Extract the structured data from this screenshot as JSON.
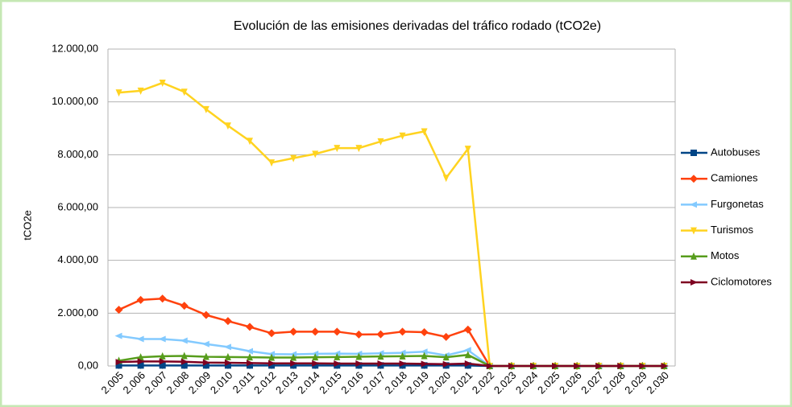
{
  "chart_data": {
    "type": "line",
    "title": "Evolución de las emisiones derivadas del tráfico rodado (tCO2e)",
    "y_label": "tCO2e",
    "categories": [
      "2.005",
      "2.006",
      "2.007",
      "2.008",
      "2.009",
      "2.010",
      "2.011",
      "2.012",
      "2.013",
      "2.014",
      "2.015",
      "2.016",
      "2.017",
      "2.018",
      "2.019",
      "2.020",
      "2.021",
      "2.022",
      "2.023",
      "2.024",
      "2.025",
      "2.026",
      "2.027",
      "2.028",
      "2.029",
      "2.030"
    ],
    "ylim": [
      0,
      12000
    ],
    "yticks": [
      {
        "value": 0,
        "label": "0,00"
      },
      {
        "value": 2000,
        "label": "2.000,00"
      },
      {
        "value": 4000,
        "label": "4.000,00"
      },
      {
        "value": 6000,
        "label": "6.000,00"
      },
      {
        "value": 8000,
        "label": "8.000,00"
      },
      {
        "value": 10000,
        "label": "10.000,00"
      },
      {
        "value": 12000,
        "label": "12.000,00"
      }
    ],
    "grid": true,
    "legend": "right",
    "series": [
      {
        "name": "Autobuses",
        "color": "#004586",
        "marker": "square",
        "values": [
          20,
          20,
          20,
          20,
          20,
          20,
          20,
          20,
          20,
          20,
          20,
          20,
          20,
          20,
          20,
          20,
          20,
          0,
          0,
          0,
          0,
          0,
          0,
          0,
          0,
          0
        ]
      },
      {
        "name": "Camiones",
        "color": "#ff420e",
        "marker": "diamond",
        "values": [
          2130,
          2500,
          2550,
          2280,
          1930,
          1700,
          1480,
          1240,
          1300,
          1300,
          1300,
          1190,
          1200,
          1300,
          1280,
          1100,
          1380,
          0,
          0,
          0,
          0,
          0,
          0,
          0,
          0,
          0
        ]
      },
      {
        "name": "Furgonetas",
        "color": "#83caff",
        "marker": "left",
        "values": [
          1140,
          1020,
          1020,
          960,
          830,
          720,
          560,
          450,
          440,
          460,
          470,
          460,
          480,
          500,
          540,
          400,
          600,
          0,
          0,
          0,
          0,
          0,
          0,
          0,
          0,
          0
        ]
      },
      {
        "name": "Turismos",
        "color": "#ffd320",
        "marker": "down",
        "values": [
          10350,
          10420,
          10720,
          10380,
          9720,
          9100,
          8520,
          7700,
          7870,
          8030,
          8250,
          8250,
          8500,
          8720,
          8880,
          7120,
          8220,
          0,
          0,
          0,
          0,
          0,
          0,
          0,
          0,
          0
        ]
      },
      {
        "name": "Motos",
        "color": "#579d1c",
        "marker": "up",
        "values": [
          200,
          330,
          370,
          380,
          350,
          340,
          330,
          320,
          320,
          330,
          340,
          350,
          360,
          370,
          380,
          330,
          420,
          0,
          0,
          0,
          0,
          0,
          0,
          0,
          0,
          0
        ]
      },
      {
        "name": "Ciclomotores",
        "color": "#7e0021",
        "marker": "right",
        "values": [
          150,
          170,
          170,
          160,
          130,
          120,
          110,
          100,
          100,
          100,
          90,
          90,
          90,
          90,
          80,
          70,
          90,
          0,
          0,
          0,
          0,
          0,
          0,
          0,
          0,
          0
        ]
      }
    ]
  }
}
